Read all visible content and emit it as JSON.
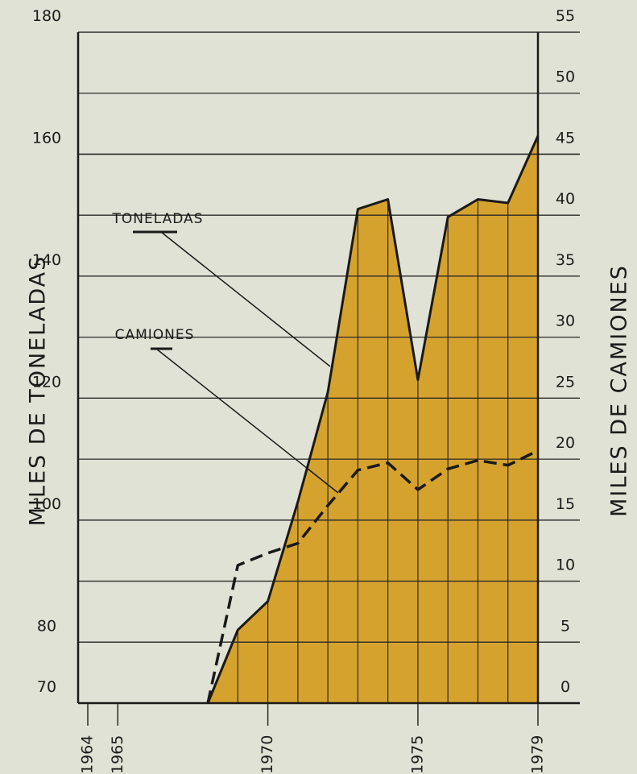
{
  "chart_data": {
    "type": "area",
    "axis_labels": {
      "y": "MILES DE TONELADAS",
      "y2": "MILES DE CAMIONES"
    },
    "x": [
      1968,
      1969,
      1970,
      1971,
      1972,
      1973,
      1974,
      1975,
      1976,
      1977,
      1978,
      1979
    ],
    "series": [
      {
        "name": "TONELADAS",
        "color": "#1a1a1a",
        "fill": "#d6a22e",
        "line_style": "solid",
        "values": [
          70,
          82,
          86.7,
          103,
          121,
          151,
          152.6,
          123,
          149.7,
          152.6,
          152,
          163
        ]
      },
      {
        "name": "CAMIONES",
        "color": "#1a1a1a",
        "line_style": "dashed",
        "axis": "y2",
        "values": [
          0,
          11.3,
          12.3,
          13.1,
          16.2,
          19.1,
          19.7,
          17.5,
          19.2,
          19.9,
          19.5,
          20.7
        ]
      }
    ],
    "xlim": [
      1964,
      1979
    ],
    "xticks": [
      1964,
      1965,
      1970,
      1975,
      1979
    ],
    "ylim": [
      70,
      180
    ],
    "yticks": [
      70,
      80,
      100,
      120,
      140,
      160,
      180
    ],
    "y2lim": [
      0,
      55
    ],
    "y2ticks": [
      0,
      5,
      10,
      15,
      20,
      25,
      30,
      35,
      40,
      45,
      50,
      55
    ],
    "grid": true
  }
}
